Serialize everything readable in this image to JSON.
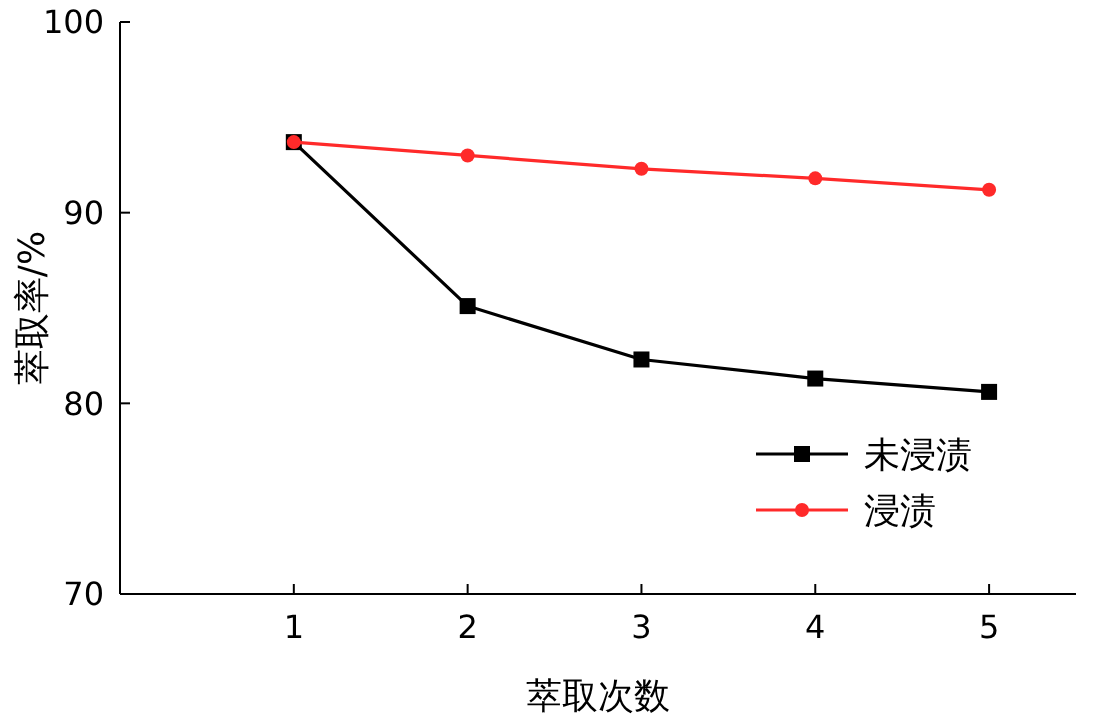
{
  "chart_data": {
    "type": "line",
    "xlabel": "萃取次数",
    "ylabel": "萃取率/%",
    "x": [
      1,
      2,
      3,
      4,
      5
    ],
    "series": [
      {
        "name": "未浸渍",
        "color": "#000000",
        "marker": "square",
        "values": [
          93.7,
          85.1,
          82.3,
          81.3,
          80.6
        ]
      },
      {
        "name": "浸渍",
        "color": "#ff2a2a",
        "marker": "circle",
        "values": [
          93.7,
          93.0,
          92.3,
          91.8,
          91.2
        ]
      }
    ],
    "xlim": [
      0,
      5.5
    ],
    "xticks": [
      1,
      2,
      3,
      4,
      5
    ],
    "ylim": [
      70,
      100
    ],
    "yticks": [
      70,
      80,
      90,
      100
    ],
    "grid": false,
    "legend": "bottom right"
  }
}
